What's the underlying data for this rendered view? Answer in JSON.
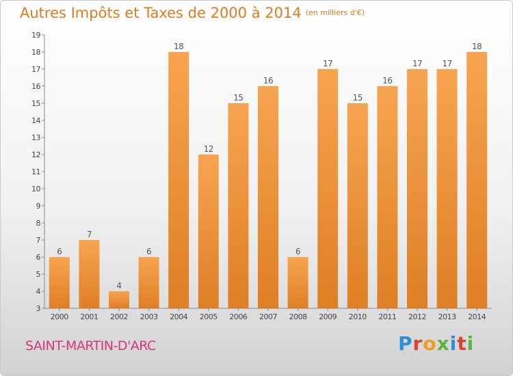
{
  "header": {
    "title": "Autres Impôts et Taxes de 2000 à 2014",
    "unit": "(en milliers d'€)"
  },
  "footer": {
    "commune": "SAINT-MARTIN-D'ARC",
    "logo_letters": [
      "P",
      "r",
      "o",
      "x",
      "i",
      "t",
      "i"
    ]
  },
  "colors": {
    "bar_light": "#f7a450",
    "bar_dark": "#de7f25",
    "title": "#e07a1e",
    "commune": "#d9357a"
  },
  "chart_data": {
    "type": "bar",
    "title": "Autres Impôts et Taxes de 2000 à 2014",
    "subtitle": "(en milliers d'€)",
    "categories": [
      "2000",
      "2001",
      "2002",
      "2003",
      "2004",
      "2005",
      "2006",
      "2007",
      "2008",
      "2009",
      "2010",
      "2011",
      "2012",
      "2013",
      "2014"
    ],
    "values": [
      6,
      7,
      4,
      6,
      18,
      12,
      15,
      16,
      6,
      17,
      15,
      16,
      17,
      17,
      18
    ],
    "ylim": [
      3,
      19
    ],
    "yticks": [
      3,
      4,
      5,
      6,
      7,
      8,
      9,
      10,
      11,
      12,
      13,
      14,
      15,
      16,
      17,
      18,
      19
    ],
    "grid": false,
    "legend": "none"
  }
}
